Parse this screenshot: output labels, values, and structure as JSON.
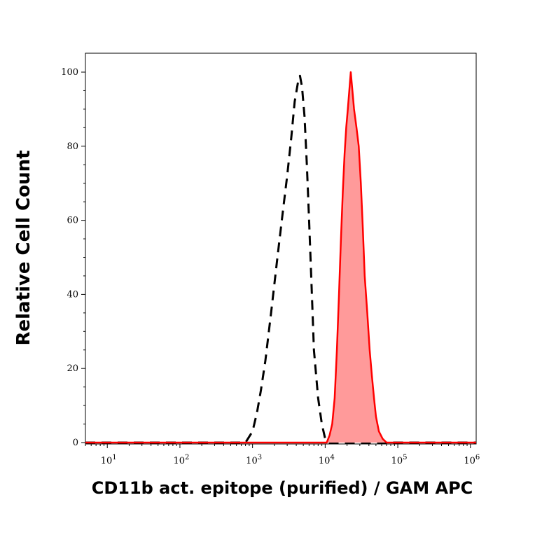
{
  "chart_data": {
    "type": "area",
    "xlabel": "CD11b act. epitope (purified) / GAM APC",
    "ylabel": "Relative Cell Count",
    "x_scale": "log10",
    "xlim": [
      5,
      1200000
    ],
    "ylim": [
      0,
      100
    ],
    "x_ticks": [
      {
        "value": 10,
        "base": "10",
        "exp": "1"
      },
      {
        "value": 100,
        "base": "10",
        "exp": "2"
      },
      {
        "value": 1000,
        "base": "10",
        "exp": "3"
      },
      {
        "value": 10000,
        "base": "10",
        "exp": "4"
      },
      {
        "value": 100000,
        "base": "10",
        "exp": "5"
      },
      {
        "value": 1000000,
        "base": "10",
        "exp": "6"
      }
    ],
    "y_ticks": [
      0,
      20,
      40,
      60,
      80,
      100
    ],
    "series": [
      {
        "style": "dashed",
        "color": "#000000",
        "fill": "none",
        "x": [
          5,
          800,
          1000,
          1150,
          1300,
          1500,
          1800,
          2200,
          2600,
          3000,
          3400,
          3800,
          4200,
          4500,
          4800,
          5200,
          5600,
          6000,
          6500,
          7000,
          8000,
          9000,
          10000,
          11000,
          1200000
        ],
        "y": [
          0,
          0,
          3,
          8,
          14,
          22,
          35,
          50,
          62,
          72,
          82,
          92,
          97,
          99,
          96,
          88,
          75,
          60,
          42,
          25,
          12,
          5,
          1,
          0,
          0
        ]
      },
      {
        "style": "solid",
        "color": "#ff0000",
        "fill": "#ff9a9a",
        "x": [
          5,
          10500,
          11500,
          12500,
          13500,
          14500,
          15500,
          16500,
          17500,
          18500,
          19500,
          20500,
          21500,
          22500,
          23500,
          25000,
          27000,
          29000,
          31000,
          33000,
          35000,
          38000,
          41000,
          44000,
          47000,
          50000,
          55000,
          62000,
          70000,
          80000,
          1200000
        ],
        "y": [
          0,
          0,
          2,
          5,
          12,
          25,
          40,
          55,
          68,
          78,
          85,
          90,
          95,
          100,
          96,
          90,
          85,
          80,
          70,
          58,
          45,
          35,
          25,
          18,
          12,
          7,
          3,
          1,
          0,
          0,
          0
        ]
      }
    ],
    "grid": false,
    "legend": "none"
  }
}
